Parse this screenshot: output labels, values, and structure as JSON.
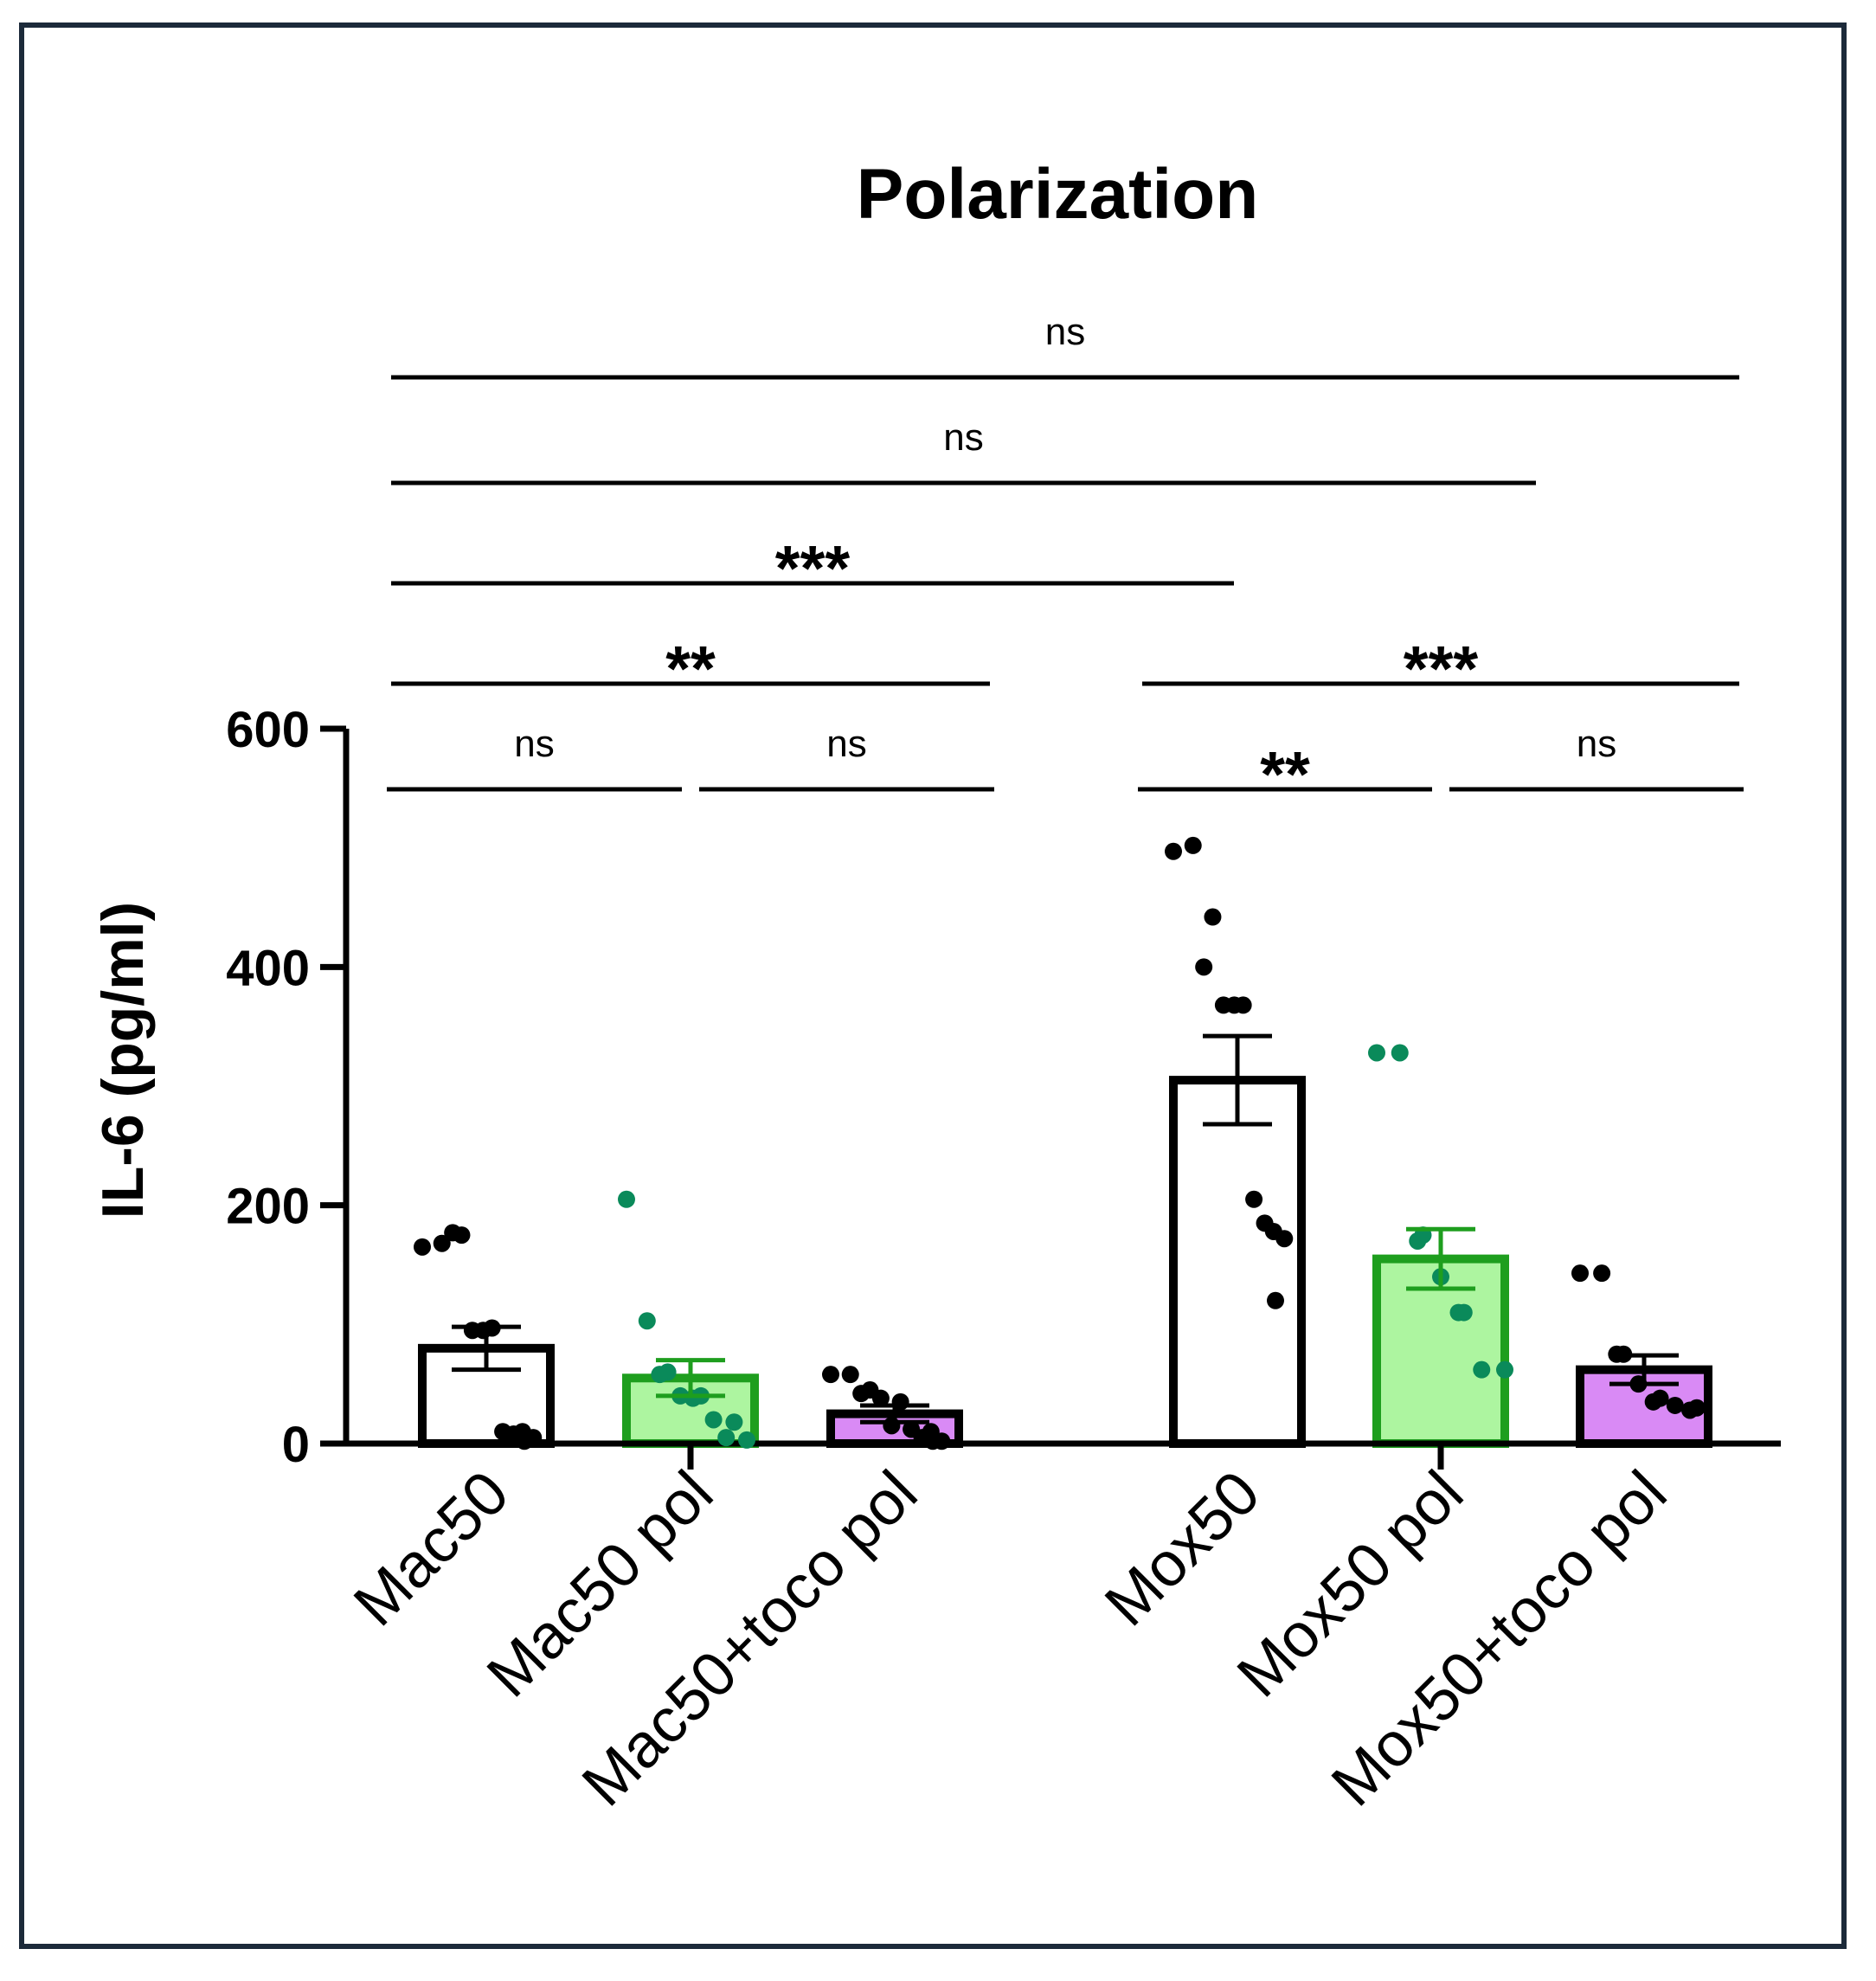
{
  "chart_data": {
    "type": "bar",
    "title": "Polarization",
    "ylabel": "IL-6 (pg/ml)",
    "xlabel": "",
    "ylim": [
      0,
      600
    ],
    "yticks": [
      0,
      200,
      400,
      600
    ],
    "grid": false,
    "categories": [
      "Mac50",
      "Mac50 pol",
      "Mac50+toco pol",
      "Mox50",
      "Mox50 pol",
      "Mox50+toco pol"
    ],
    "values": [
      80,
      55,
      25,
      305,
      155,
      62
    ],
    "sem": [
      18,
      15,
      7,
      37,
      25,
      12
    ],
    "bar_colors": [
      "#ffffff",
      "#adf5a0",
      "#d98af5",
      "#ffffff",
      "#adf5a0",
      "#d98af5"
    ],
    "bar_edge_colors": [
      "#000000",
      "#1e9e1e",
      "#000000",
      "#000000",
      "#1e9e1e",
      "#000000"
    ],
    "point_colors": [
      "#000000",
      "#0a8a5a",
      "#000000",
      "#000000",
      "#0a8a5a",
      "#000000"
    ],
    "points": [
      [
        165,
        168,
        175,
        177,
        95,
        97,
        95,
        10,
        10,
        8,
        5,
        2
      ],
      [
        205,
        103,
        60,
        58,
        40,
        40,
        38,
        20,
        18,
        5,
        3
      ],
      [
        58,
        58,
        45,
        42,
        38,
        35,
        15,
        12,
        10,
        5,
        2,
        2
      ],
      [
        497,
        502,
        442,
        400,
        368,
        368,
        368,
        205,
        178,
        185,
        172,
        120
      ],
      [
        328,
        328,
        175,
        170,
        140,
        110,
        110,
        62,
        62
      ],
      [
        143,
        143,
        75,
        75,
        50,
        38,
        35,
        32,
        30,
        28
      ]
    ],
    "comparisons": [
      {
        "from": 0,
        "to": 1,
        "label": "ns"
      },
      {
        "from": 1,
        "to": 2,
        "label": "ns"
      },
      {
        "from": 0,
        "to": 2,
        "label": "**"
      },
      {
        "from": 3,
        "to": 4,
        "label": "**"
      },
      {
        "from": 4,
        "to": 5,
        "label": "ns"
      },
      {
        "from": 3,
        "to": 5,
        "label": "***"
      },
      {
        "from": 0,
        "to": 3,
        "label": "***"
      },
      {
        "from": 0,
        "to": 4,
        "label": "ns"
      },
      {
        "from": 0,
        "to": 5,
        "label": "ns"
      }
    ]
  }
}
